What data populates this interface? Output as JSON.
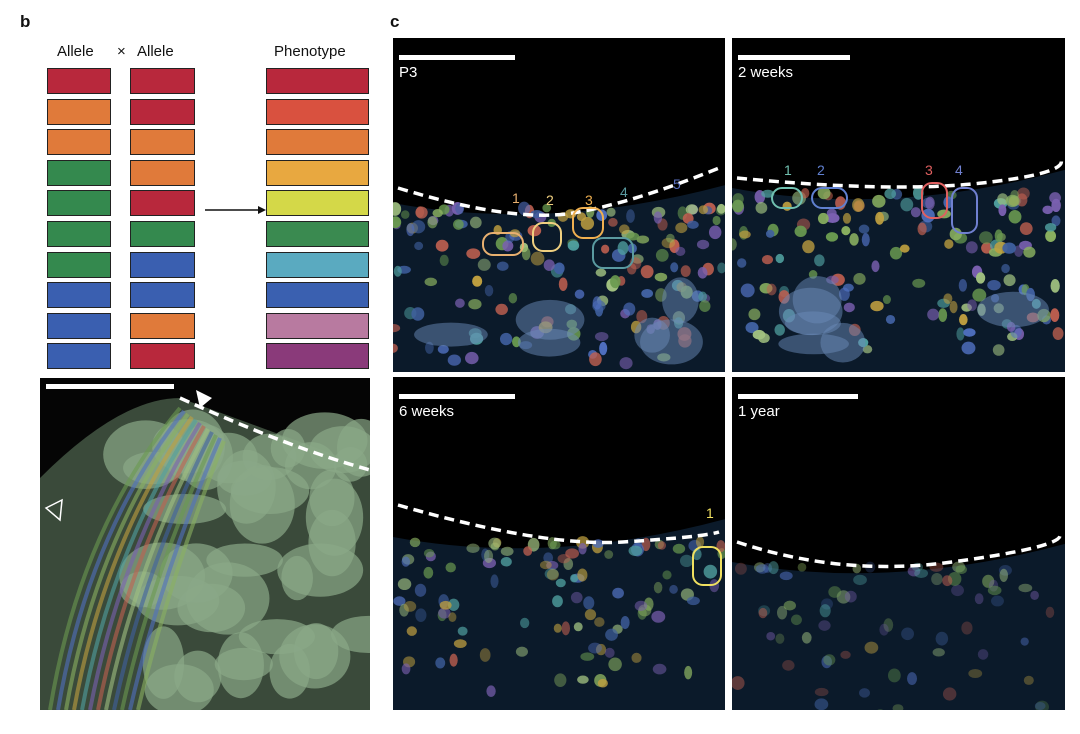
{
  "panel_b": {
    "label": "b",
    "header_allele1": "Allele",
    "times": "×",
    "header_allele2": "Allele",
    "header_phenotype": "Phenotype",
    "allele1_colors": [
      "#b8283c",
      "#e07a3a",
      "#e07a3a",
      "#34894e",
      "#34894e",
      "#34894e",
      "#34894e",
      "#3a5fb0",
      "#3a5fb0",
      "#3a5fb0"
    ],
    "allele2_colors": [
      "#b8283c",
      "#b8283c",
      "#e07a3a",
      "#e07a3a",
      "#b8283c",
      "#34894e",
      "#3a5fb0",
      "#3a5fb0",
      "#e07a3a",
      "#b8283c"
    ],
    "phenotype_colors": [
      "#b8283c",
      "#d9513f",
      "#e07a3a",
      "#e8a840",
      "#d4d848",
      "#3a8a50",
      "#5aaac0",
      "#3a60b0",
      "#b87aa0",
      "#8a3a7a"
    ]
  },
  "panel_c": {
    "label": "c",
    "images": [
      {
        "title": "P3",
        "clones": [
          {
            "n": "1",
            "color": "#e8b070"
          },
          {
            "n": "2",
            "color": "#f0d080"
          },
          {
            "n": "3",
            "color": "#f0b050"
          },
          {
            "n": "4",
            "color": "#5a9aa0"
          },
          {
            "n": "5",
            "color": "#5a70c0"
          }
        ]
      },
      {
        "title": "2 weeks",
        "clones": [
          {
            "n": "1",
            "color": "#70c0b0"
          },
          {
            "n": "2",
            "color": "#6080d0"
          },
          {
            "n": "3",
            "color": "#e06060"
          },
          {
            "n": "4",
            "color": "#7080d0"
          }
        ]
      },
      {
        "title": "6 weeks",
        "clones": [
          {
            "n": "1",
            "color": "#f0e060"
          }
        ]
      },
      {
        "title": "1 year",
        "clones": []
      }
    ]
  }
}
